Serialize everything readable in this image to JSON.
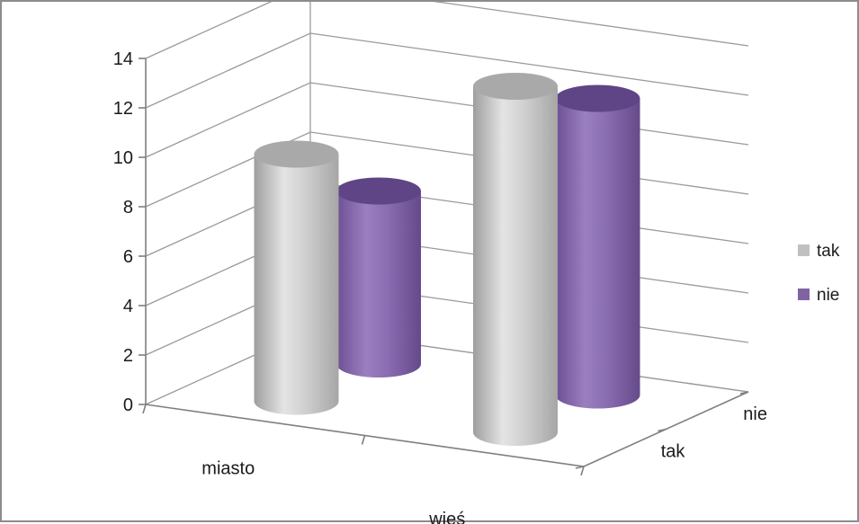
{
  "chart_data": {
    "type": "bar",
    "variant": "3d-cylinder",
    "title": "",
    "xlabel": "",
    "ylabel": "",
    "categories": [
      "miasto",
      "wieś"
    ],
    "depth_categories": [
      "tak",
      "nie"
    ],
    "series": [
      {
        "name": "tak",
        "color": "#c0c0c0",
        "values": [
          10,
          14
        ]
      },
      {
        "name": "nie",
        "color": "#8064a2",
        "values": [
          7,
          12
        ]
      }
    ],
    "ylim": [
      0,
      14
    ],
    "y_ticks": [
      "0",
      "2",
      "4",
      "6",
      "8",
      "10",
      "12",
      "14"
    ],
    "grid": true,
    "legend_position": "right"
  }
}
